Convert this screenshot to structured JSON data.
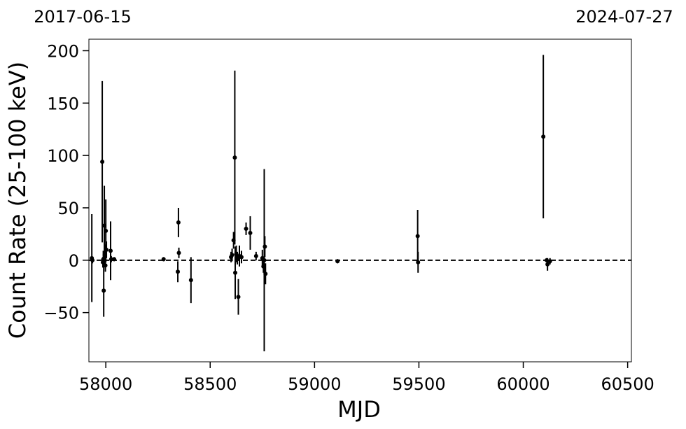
{
  "chart_data": {
    "type": "errorbar",
    "x_start_label": "2017-06-15",
    "x_end_label": "2024-07-27",
    "xlabel": "MJD",
    "ylabel": "Count Rate (25-100 keV)",
    "x": [
      57933,
      57936,
      57983,
      57986,
      57988,
      57990,
      57993,
      57995,
      57998,
      58000,
      58003,
      58023,
      58026,
      58040,
      58277,
      58348,
      58345,
      58350,
      58408,
      58600,
      58605,
      58612,
      58618,
      58620,
      58625,
      58630,
      58635,
      58640,
      58650,
      58672,
      58692,
      58720,
      58750,
      58755,
      58759,
      58762,
      58765,
      59110,
      59494,
      59496,
      60096,
      60112,
      60116,
      60128
    ],
    "values": [
      2,
      0,
      94,
      -2,
      1,
      -29,
      33,
      5,
      -5,
      28,
      10,
      9,
      1,
      1,
      1,
      36,
      -11,
      7,
      -19,
      3,
      5,
      19,
      98,
      -12,
      6,
      2,
      -35,
      4,
      3,
      30,
      26,
      4,
      2,
      -6,
      0,
      13,
      -13,
      -1,
      23,
      -2,
      118,
      0,
      -4,
      -1
    ],
    "errors": [
      42,
      3,
      77,
      5,
      8,
      25,
      38,
      10,
      6,
      30,
      8,
      28,
      3,
      2,
      2,
      14,
      10,
      5,
      22,
      5,
      6,
      8,
      83,
      25,
      8,
      6,
      17,
      10,
      6,
      6,
      16,
      4,
      8,
      6,
      87,
      10,
      10,
      2,
      25,
      10,
      78,
      2,
      6,
      3
    ],
    "color": "#000000",
    "reference_line": 0,
    "xlim": [
      57919,
      60518
    ],
    "ylim": [
      -97,
      211
    ],
    "xticks": [
      58000,
      58500,
      59000,
      59500,
      60000,
      60500
    ],
    "yticks": [
      {
        "value": -50,
        "label": "−50"
      },
      0,
      50,
      100,
      150,
      200
    ]
  }
}
